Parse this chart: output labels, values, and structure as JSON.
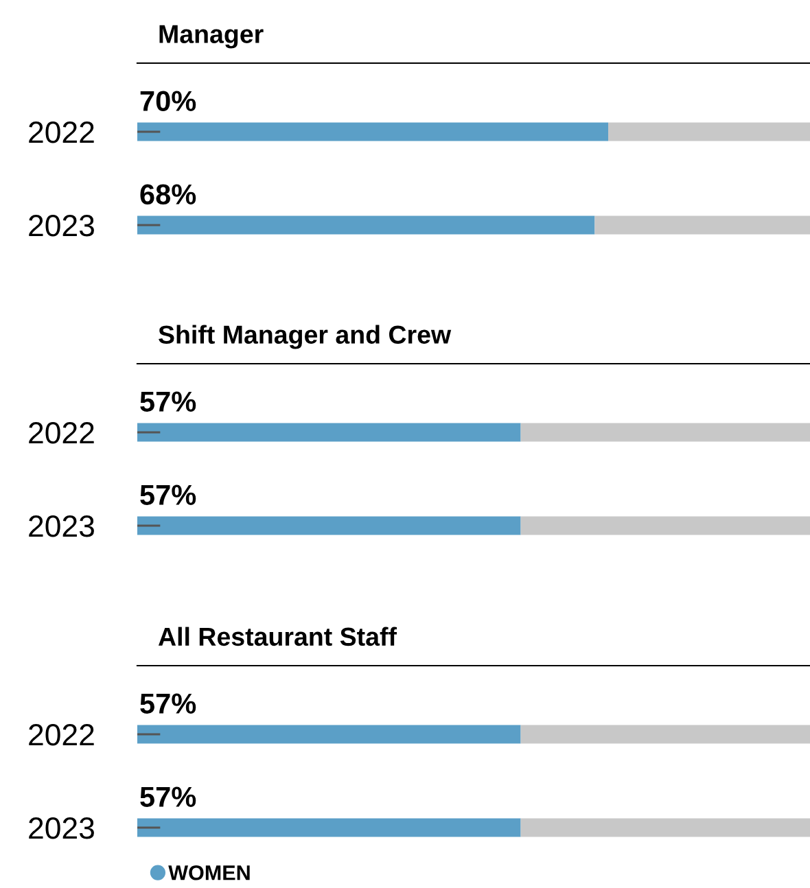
{
  "chart_data": [
    {
      "type": "bar",
      "title": "Manager",
      "orientation": "horizontal",
      "stacked": true,
      "categories": [
        "2022",
        "2023"
      ],
      "xlim": [
        0,
        100
      ],
      "tick_labels": "y",
      "series": [
        {
          "color": "#5b9fc7",
          "values": [
            70,
            68
          ],
          "value_labels": [
            "70%",
            "68%"
          ]
        },
        {
          "color": "#c8c8c8",
          "values": [
            30,
            32
          ]
        }
      ]
    },
    {
      "type": "bar",
      "title": "Shift Manager and Crew",
      "orientation": "horizontal",
      "stacked": true,
      "categories": [
        "2022",
        "2023"
      ],
      "xlim": [
        0,
        100
      ],
      "tick_labels": "y",
      "series": [
        {
          "color": "#5b9fc7",
          "values": [
            57,
            57
          ],
          "value_labels": [
            "57%",
            "57%"
          ]
        },
        {
          "color": "#c8c8c8",
          "values": [
            43,
            43
          ]
        }
      ]
    },
    {
      "type": "bar",
      "title": "All Restaurant Staff",
      "orientation": "horizontal",
      "stacked": true,
      "categories": [
        "2022",
        "2023"
      ],
      "xlim": [
        0,
        100
      ],
      "tick_labels": "y",
      "legend": "bottom left",
      "series": [
        {
          "name": "WOMEN",
          "color": "#5b9fc7",
          "values": [
            57,
            57
          ],
          "value_labels": [
            "57%",
            "57%"
          ]
        },
        {
          "color": "#c8c8c8",
          "values": [
            43,
            43
          ]
        }
      ]
    }
  ]
}
